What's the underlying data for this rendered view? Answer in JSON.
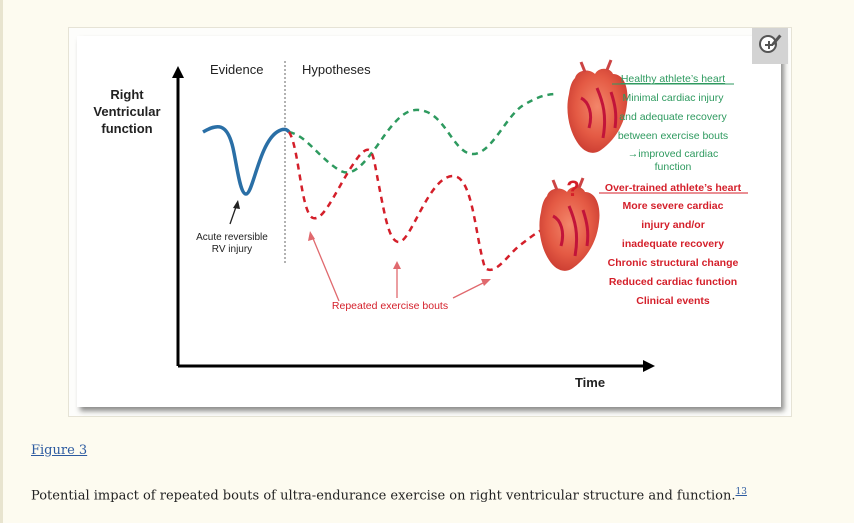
{
  "figure": {
    "link_label": "Figure 3",
    "caption": "Potential impact of repeated bouts of ultra-endurance exercise on right ventricular structure and function.",
    "caption_ref": "13"
  },
  "diagram": {
    "y_axis_label": [
      "Right",
      "Ventricular",
      "function"
    ],
    "x_axis_label": "Time",
    "section_evidence": "Evidence",
    "section_hypotheses": "Hypotheses",
    "acute_label": [
      "Acute reversible",
      "RV injury"
    ],
    "bouts_label": "Repeated exercise bouts",
    "healthy_title": "Healthy athlete’s heart",
    "healthy_lines": [
      "Minimal cardiac injury",
      "and adequate recovery",
      "between exercise bouts",
      "→improved cardiac",
      "function"
    ],
    "overtrained_title": "Over-trained athlete’s heart",
    "overtrained_lines": [
      "More severe cardiac",
      "injury and/or",
      "inadequate recovery",
      "Chronic structural change",
      "Reduced cardiac function",
      "Clinical events"
    ],
    "question_mark": "?"
  },
  "colors": {
    "evidence_curve": "#2a6fa6",
    "healthy": "#2e9a5f",
    "overtrained": "#d41f2a",
    "arrow_red": "#e0696e",
    "zoom_button": "#d3d3d3"
  },
  "icons": {
    "zoom": "zoom-in-icon",
    "heart": "heart-illustration"
  }
}
